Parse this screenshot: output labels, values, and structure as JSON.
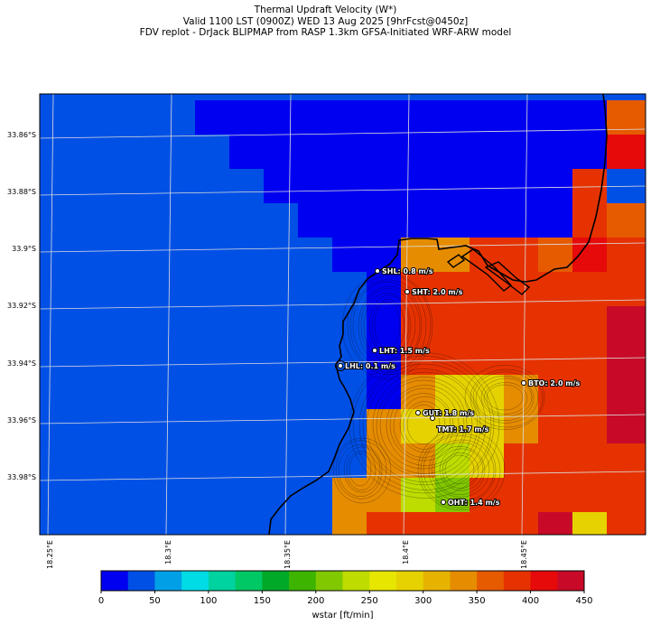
{
  "title": {
    "line1": "Thermal Updraft Velocity (W*)",
    "line2": "Valid 1100 LST (0900Z) WED 13 Aug 2025 [9hrFcst@0450z]",
    "line3": "FDV replot - DrJack BLIPMAP from RASP 1.3km GFSA-Initiated WRF-ARW model"
  },
  "lat_labels": [
    "33.86°S",
    "33.88°S",
    "33.9°S",
    "33.92°S",
    "33.94°S",
    "33.96°S",
    "33.98°S"
  ],
  "lon_labels": [
    "18.25°E",
    "18.3°E",
    "18.35°E",
    "18.4°E",
    "18.45°E"
  ],
  "stations": [
    {
      "id": "SHL",
      "label": "SHL: 0.8 m/s"
    },
    {
      "id": "SHT",
      "label": "SHT: 2.0 m/s"
    },
    {
      "id": "LHT",
      "label": "LHT: 1.5 m/s"
    },
    {
      "id": "LHL",
      "label": "LHL: 0.1 m/s"
    },
    {
      "id": "BTO",
      "label": "BTO: 2.0 m/s"
    },
    {
      "id": "GUT",
      "label": "GUT: 1.8 m/s"
    },
    {
      "id": "TMT",
      "label": "TMT: 1.7 m/s"
    },
    {
      "id": "OHT",
      "label": "OHT: 1.4 m/s"
    }
  ],
  "colorbar": {
    "label": "wstar [ft/min]",
    "ticks": [
      "0",
      "50",
      "100",
      "150",
      "200",
      "250",
      "300",
      "350",
      "400",
      "450"
    ],
    "colors": [
      "#0000f0",
      "#0050e6",
      "#00a0e6",
      "#00dce6",
      "#00d2a0",
      "#00c864",
      "#00aa28",
      "#3cb400",
      "#82c800",
      "#bedc00",
      "#e6e600",
      "#e6d200",
      "#e6b400",
      "#e68c00",
      "#e65a00",
      "#e63200",
      "#e60a0a",
      "#c80a28"
    ]
  }
}
